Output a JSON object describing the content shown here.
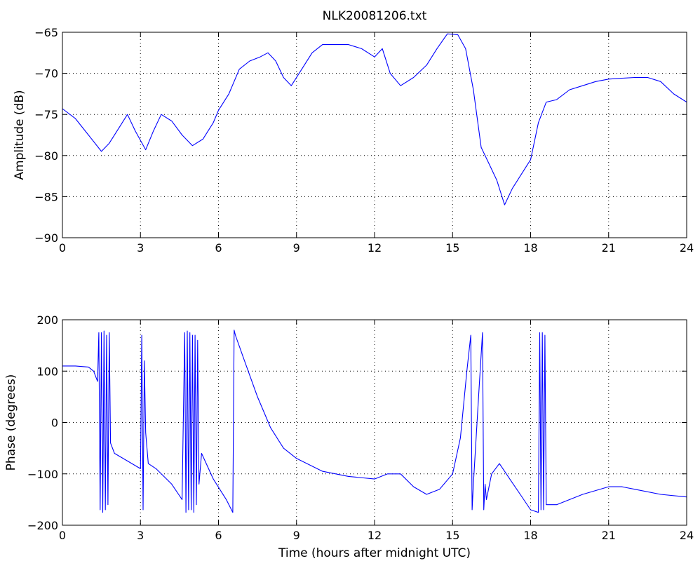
{
  "chart_data": [
    {
      "type": "line",
      "title": "NLK20081206.txt",
      "xlabel": "",
      "ylabel": "Amplitude (dB)",
      "xlim": [
        0,
        24
      ],
      "ylim": [
        -90,
        -65
      ],
      "xticks": [
        "0",
        "3",
        "6",
        "9",
        "12",
        "15",
        "18",
        "21",
        "24"
      ],
      "yticks": [
        "-90",
        "-85",
        "-80",
        "-75",
        "-70",
        "-65"
      ],
      "grid": true,
      "series": [
        {
          "color": "#0000ff",
          "x": [
            0,
            0.5,
            1.0,
            1.5,
            1.8,
            2.2,
            2.5,
            2.8,
            3.2,
            3.5,
            3.8,
            4.2,
            4.6,
            5.0,
            5.4,
            5.8,
            6.0,
            6.4,
            6.8,
            7.2,
            7.6,
            7.9,
            8.2,
            8.5,
            8.8,
            9.2,
            9.6,
            10.0,
            10.5,
            11.0,
            11.5,
            12.0,
            12.3,
            12.6,
            13.0,
            13.5,
            14.0,
            14.4,
            14.8,
            15.2,
            15.5,
            15.8,
            16.1,
            16.4,
            16.7,
            17.0,
            17.3,
            17.7,
            18.0,
            18.3,
            18.6,
            19.0,
            19.5,
            20.0,
            20.5,
            21.0,
            21.5,
            22.0,
            22.5,
            23.0,
            23.5,
            24.0
          ],
          "y": [
            -74.3,
            -75.5,
            -77.5,
            -79.5,
            -78.5,
            -76.5,
            -75.0,
            -77.0,
            -79.3,
            -77.0,
            -75.0,
            -75.8,
            -77.5,
            -78.8,
            -78.0,
            -76.0,
            -74.5,
            -72.5,
            -69.5,
            -68.5,
            -68.0,
            -67.5,
            -68.5,
            -70.5,
            -71.5,
            -69.5,
            -67.5,
            -66.5,
            -66.5,
            -66.5,
            -67.0,
            -68.0,
            -67.0,
            -70.0,
            -71.5,
            -70.5,
            -69.0,
            -67.0,
            -65.2,
            -65.3,
            -67.0,
            -72.0,
            -79.0,
            -81.0,
            -83.0,
            -86.0,
            -84.0,
            -82.0,
            -80.5,
            -76.0,
            -73.5,
            -73.2,
            -72.0,
            -71.5,
            -71.0,
            -70.7,
            -70.6,
            -70.5,
            -70.5,
            -71.0,
            -72.5,
            -73.5
          ]
        }
      ]
    },
    {
      "type": "line",
      "title": "",
      "xlabel": "Time (hours after midnight UTC)",
      "ylabel": "Phase (degrees)",
      "xlim": [
        0,
        24
      ],
      "ylim": [
        -200,
        200
      ],
      "xticks": [
        "0",
        "3",
        "6",
        "9",
        "12",
        "15",
        "18",
        "21",
        "24"
      ],
      "yticks": [
        "-200",
        "-100",
        "0",
        "100",
        "200"
      ],
      "grid": true,
      "series": [
        {
          "color": "#0000ff",
          "x": [
            0,
            0.5,
            1.0,
            1.2,
            1.35,
            1.4,
            1.45,
            1.5,
            1.55,
            1.6,
            1.65,
            1.7,
            1.75,
            1.8,
            1.85,
            2.0,
            2.5,
            3.0,
            3.05,
            3.1,
            3.15,
            3.2,
            3.3,
            3.6,
            4.2,
            4.6,
            4.7,
            4.75,
            4.8,
            4.85,
            4.9,
            4.95,
            5.0,
            5.05,
            5.1,
            5.15,
            5.2,
            5.25,
            5.35,
            5.8,
            6.3,
            6.55,
            6.6,
            6.65,
            7.0,
            7.5,
            8.0,
            8.5,
            9.0,
            10.0,
            11.0,
            12.0,
            12.5,
            13.0,
            13.5,
            14.0,
            14.5,
            15.0,
            15.3,
            15.55,
            15.7,
            15.75,
            15.8,
            16.0,
            16.15,
            16.2,
            16.25,
            16.3,
            16.5,
            16.8,
            17.2,
            17.6,
            18.0,
            18.3,
            18.35,
            18.4,
            18.45,
            18.5,
            18.55,
            18.6,
            19.0,
            20.0,
            21.0,
            21.5,
            22.0,
            23.0,
            24.0
          ],
          "y": [
            110,
            110,
            108,
            100,
            80,
            175,
            -170,
            175,
            -175,
            178,
            -170,
            170,
            -160,
            175,
            -40,
            -60,
            -75,
            -90,
            170,
            -170,
            120,
            -20,
            -80,
            -90,
            -120,
            -150,
            175,
            -175,
            178,
            -170,
            175,
            -170,
            170,
            -175,
            170,
            -160,
            160,
            -120,
            -60,
            -110,
            -150,
            -175,
            180,
            170,
            120,
            50,
            -10,
            -50,
            -70,
            -95,
            -105,
            -110,
            -100,
            -100,
            -125,
            -140,
            -130,
            -100,
            -30,
            100,
            170,
            -170,
            -120,
            50,
            175,
            -170,
            -120,
            -150,
            -100,
            -80,
            -110,
            -140,
            -170,
            -175,
            175,
            -170,
            175,
            -170,
            170,
            -160,
            -160,
            -140,
            -125,
            -125,
            -130,
            -140,
            -145
          ]
        }
      ]
    }
  ]
}
